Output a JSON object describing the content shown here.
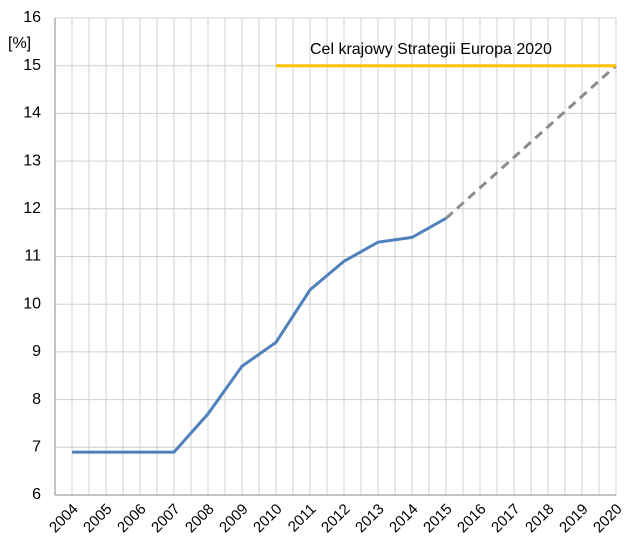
{
  "chart_data": {
    "type": "line",
    "y_label": "[%]",
    "annotation": "Cel krajowy Strategii Europa 2020",
    "categories": [
      "2004",
      "2005",
      "2006",
      "2007",
      "2008",
      "2009",
      "2010",
      "2011",
      "2012",
      "2013",
      "2014",
      "2015",
      "2016",
      "2017",
      "2018",
      "2019",
      "2020"
    ],
    "series": [
      {
        "color": "#4f81bd",
        "dash": false,
        "values": [
          6.9,
          6.9,
          6.9,
          6.9,
          7.7,
          8.7,
          9.2,
          10.3,
          10.9,
          11.3,
          11.4,
          11.8,
          null,
          null,
          null,
          null,
          null
        ]
      },
      {
        "color": "#8c8c8c",
        "dash": true,
        "values": [
          null,
          null,
          null,
          null,
          null,
          null,
          null,
          null,
          null,
          null,
          null,
          11.8,
          12.44,
          13.08,
          13.72,
          14.36,
          15
        ]
      },
      {
        "color": "#ffc000",
        "dash": false,
        "values": [
          null,
          null,
          null,
          null,
          null,
          null,
          15,
          15,
          15,
          15,
          15,
          15,
          15,
          15,
          15,
          15,
          15
        ]
      }
    ],
    "ylim": [
      6,
      16
    ],
    "yticks": [
      6,
      7,
      8,
      9,
      10,
      11,
      12,
      13,
      14,
      15,
      16
    ],
    "grid": true
  }
}
